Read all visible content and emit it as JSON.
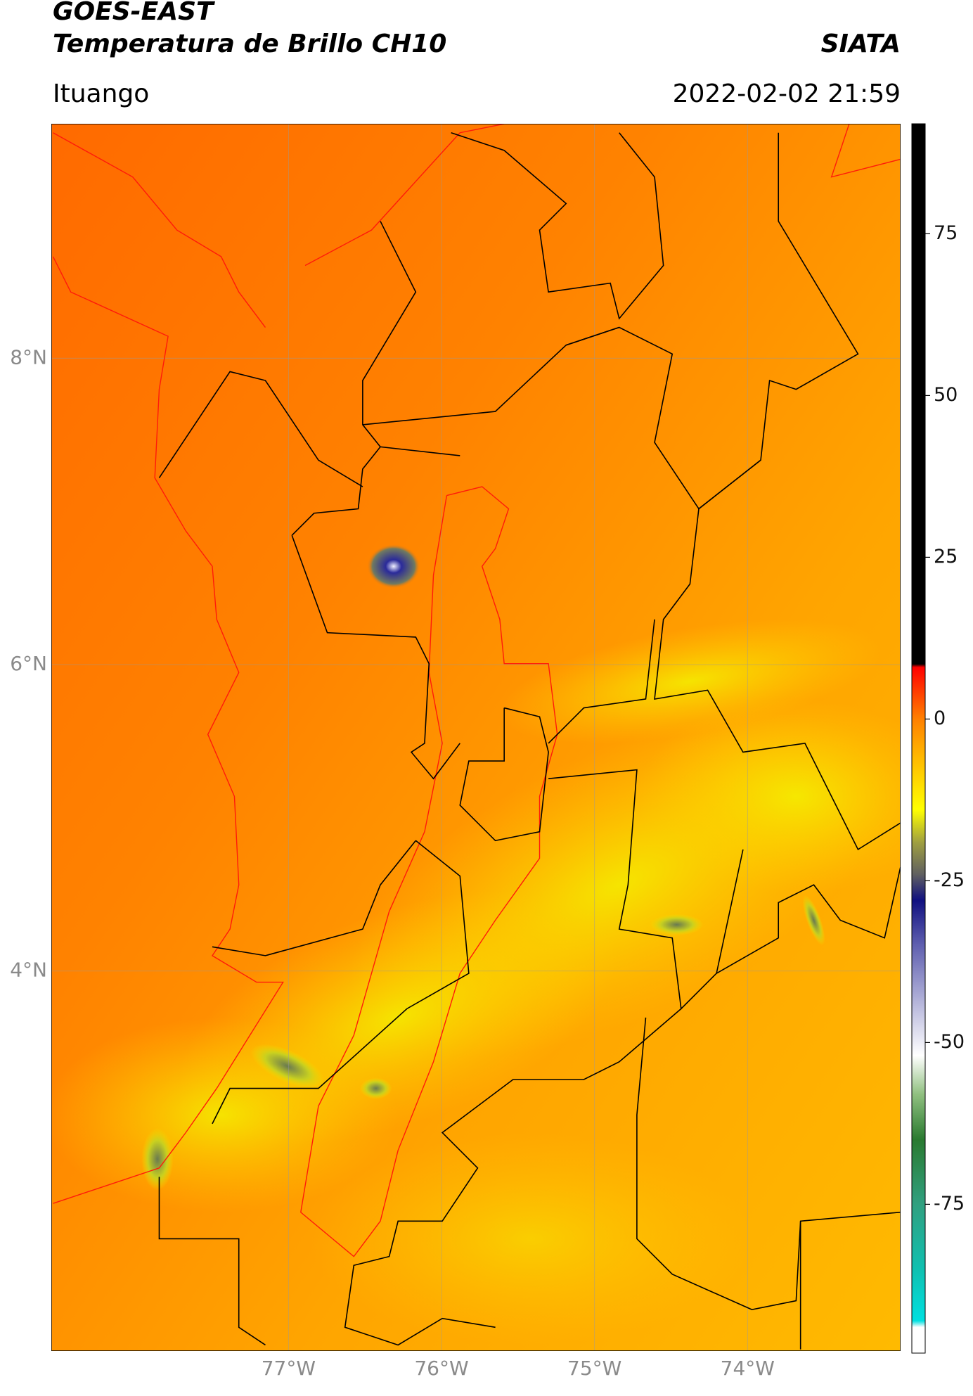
{
  "header": {
    "title": "GOES-EAST",
    "subtitle": "Temperatura de Brillo CH10",
    "source": "SIATA",
    "location": "Ituango",
    "datetime": "2022-02-02 21:59"
  },
  "map": {
    "xlim": [
      -78.55,
      -73.0
    ],
    "ylim": [
      1.52,
      9.53
    ],
    "xticks": [
      {
        "value": -77,
        "label": "77°W"
      },
      {
        "value": -76,
        "label": "76°W"
      },
      {
        "value": -75,
        "label": "75°W"
      },
      {
        "value": -74,
        "label": "74°W"
      }
    ],
    "yticks": [
      {
        "value": 8,
        "label": "8°N"
      },
      {
        "value": 6,
        "label": "6°N"
      },
      {
        "value": 4,
        "label": "4°N"
      }
    ],
    "grid": true
  },
  "colorbar": {
    "lim": [
      -98,
      92
    ],
    "ticks": [
      75,
      50,
      25,
      0,
      -25,
      -50,
      -75
    ]
  }
}
